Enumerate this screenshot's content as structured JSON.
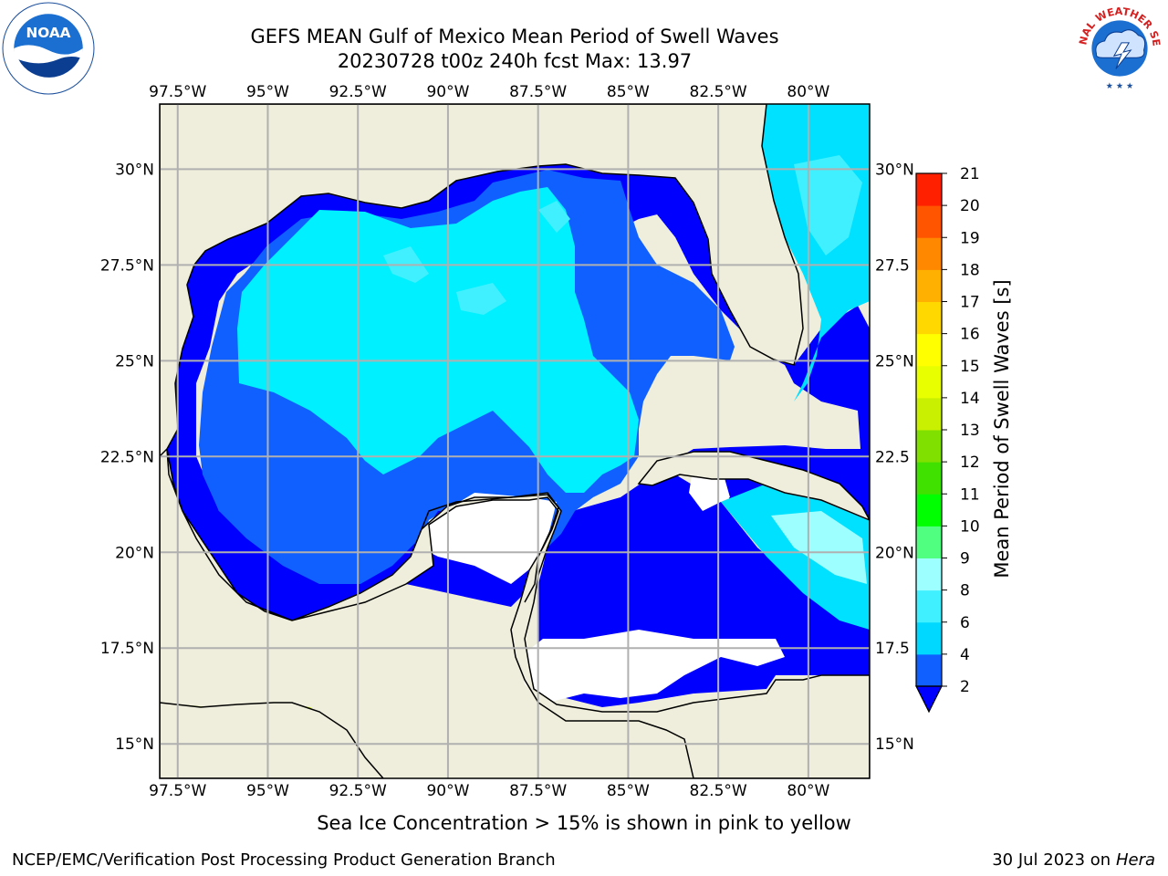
{
  "title": {
    "line1": "GEFS MEAN Gulf of Mexico Mean Period of Swell Waves",
    "line2": "20230728 t00z 240h fcst   Max: 13.97"
  },
  "logos": {
    "left": "noaa-logo",
    "right": "national-weather-service-logo",
    "left_text": "NOAA",
    "right_text": "NATIONAL WEATHER SERVICE"
  },
  "map": {
    "region": "Gulf of Mexico",
    "lon_labels": [
      "97.5°W",
      "95°W",
      "92.5°W",
      "90°W",
      "87.5°W",
      "85°W",
      "82.5°W",
      "80°W"
    ],
    "lon_values": [
      -97.5,
      -95,
      -92.5,
      -90,
      -87.5,
      -85,
      -82.5,
      -80
    ],
    "lat_labels_left": [
      "30°N",
      "27.5°N",
      "25°N",
      "22.5°N",
      "20°N",
      "17.5°N",
      "15°N"
    ],
    "lat_labels_right": [
      "30°N",
      "27.5",
      "25°N",
      "22.5",
      "20°N",
      "17.5",
      "15°N"
    ],
    "lat_values": [
      30,
      27.5,
      25,
      22.5,
      20,
      17.5,
      15
    ],
    "extent": {
      "lon_min": -98,
      "lon_max": -78.3,
      "lat_min": 14.1,
      "lat_max": 31.7
    },
    "land_color": "#efeedc",
    "grid_color": "#b0b0b0"
  },
  "colorbar": {
    "label": "Mean Period of Swell Waves [s]",
    "ticks": [
      "2",
      "4",
      "6",
      "8",
      "9",
      "10",
      "11",
      "12",
      "13",
      "14",
      "15",
      "16",
      "17",
      "18",
      "19",
      "20",
      "21"
    ],
    "colors": [
      "#1060ff",
      "#00d8ff",
      "#40f0ff",
      "#9dffff",
      "#50ff80",
      "#00ff00",
      "#40e000",
      "#80e000",
      "#c8f000",
      "#e8ff00",
      "#ffff00",
      "#ffd800",
      "#ffb000",
      "#ff8800",
      "#ff5500",
      "#ff2000"
    ],
    "under_color": "#0000ff"
  },
  "note": "Sea Ice Concentration > 15% is shown in pink to yellow",
  "footer": {
    "left": "NCEP/EMC/Verification Post Processing Product Generation Branch",
    "date": "30 Jul 2023 on ",
    "machine": "Hera"
  }
}
